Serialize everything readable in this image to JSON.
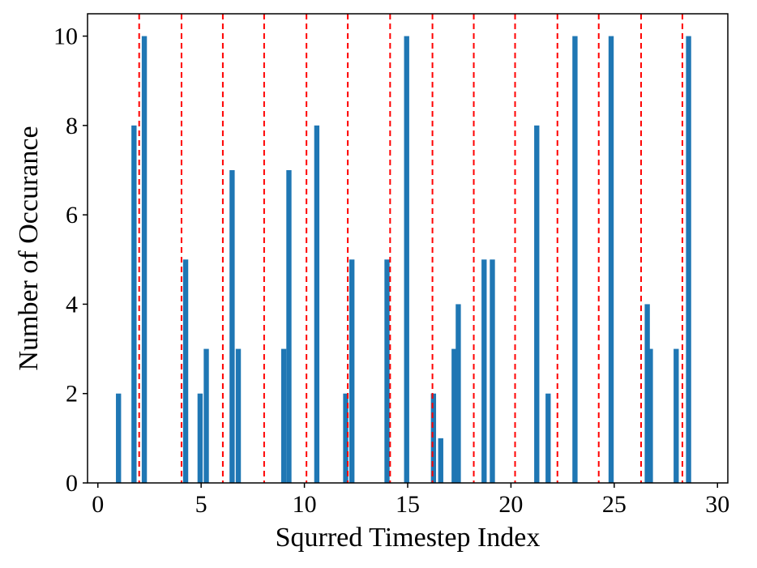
{
  "chart_data": {
    "type": "bar",
    "title": "",
    "xlabel": "Squrred Timestep Index",
    "ylabel": "Number of Occurance",
    "xlim": [
      -0.5,
      30.5
    ],
    "ylim": [
      0,
      10.5
    ],
    "xticks": [
      0,
      5,
      10,
      15,
      20,
      25,
      30
    ],
    "yticks": [
      0,
      2,
      4,
      6,
      8,
      10
    ],
    "bar_width": 0.25,
    "bars": [
      {
        "x": 1.0,
        "value": 2
      },
      {
        "x": 1.75,
        "value": 8
      },
      {
        "x": 2.25,
        "value": 10
      },
      {
        "x": 4.25,
        "value": 5
      },
      {
        "x": 4.95,
        "value": 2
      },
      {
        "x": 5.25,
        "value": 3
      },
      {
        "x": 6.5,
        "value": 7
      },
      {
        "x": 6.8,
        "value": 3
      },
      {
        "x": 9.0,
        "value": 3
      },
      {
        "x": 9.25,
        "value": 7
      },
      {
        "x": 10.6,
        "value": 8
      },
      {
        "x": 12.0,
        "value": 2
      },
      {
        "x": 12.3,
        "value": 5
      },
      {
        "x": 14.0,
        "value": 5
      },
      {
        "x": 14.95,
        "value": 10
      },
      {
        "x": 16.25,
        "value": 2
      },
      {
        "x": 16.6,
        "value": 1
      },
      {
        "x": 17.25,
        "value": 3
      },
      {
        "x": 17.45,
        "value": 4
      },
      {
        "x": 18.7,
        "value": 5
      },
      {
        "x": 19.1,
        "value": 5
      },
      {
        "x": 21.25,
        "value": 8
      },
      {
        "x": 21.8,
        "value": 2
      },
      {
        "x": 23.1,
        "value": 10
      },
      {
        "x": 24.85,
        "value": 10
      },
      {
        "x": 26.6,
        "value": 4
      },
      {
        "x": 26.75,
        "value": 3
      },
      {
        "x": 28.0,
        "value": 3
      },
      {
        "x": 28.6,
        "value": 10
      }
    ],
    "vlines": [
      2.0,
      4.05,
      6.05,
      8.05,
      10.1,
      12.1,
      14.15,
      16.2,
      18.2,
      20.2,
      22.25,
      24.25,
      26.3,
      28.3
    ],
    "colors": {
      "bar": "#1f77b4",
      "vline": "#ff0000",
      "axis": "#000000"
    }
  }
}
